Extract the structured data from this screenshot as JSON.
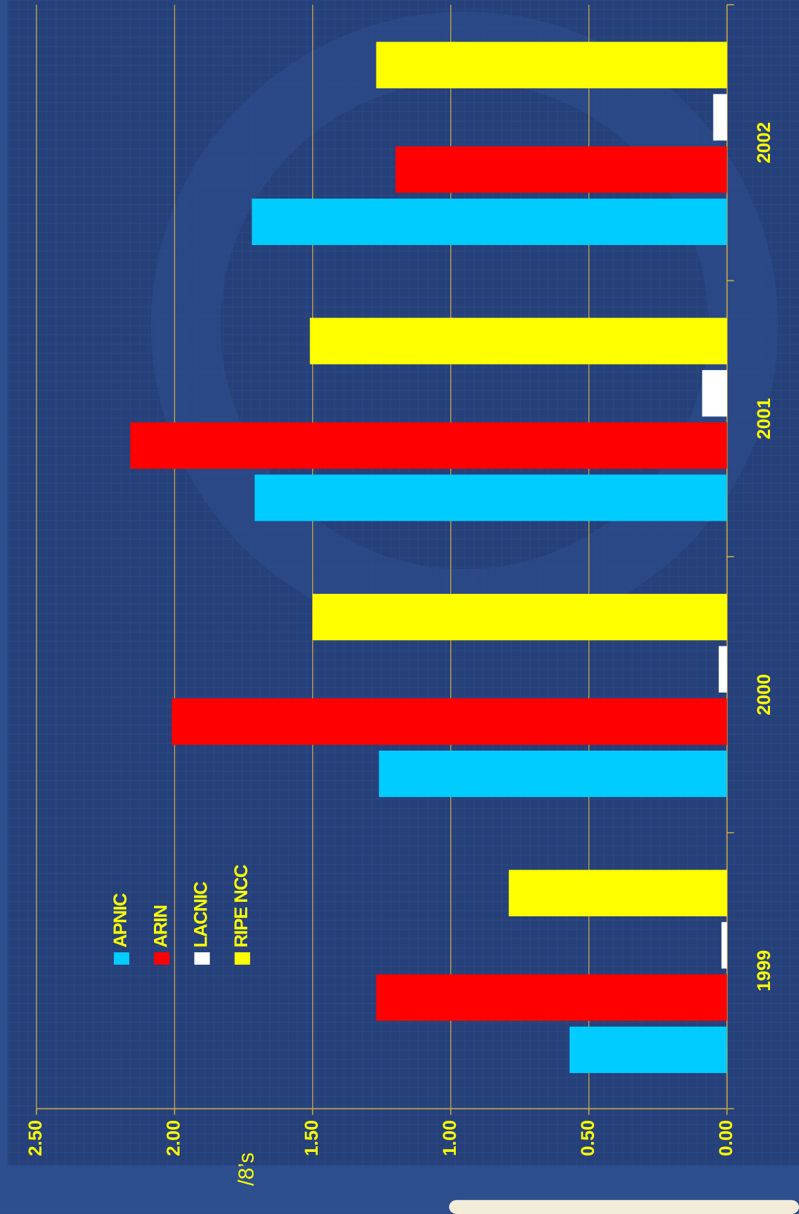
{
  "chart_data": {
    "type": "bar",
    "orientation": "horizontal",
    "y_axis_label": "/8’s",
    "categories": [
      "1999",
      "2000",
      "2001",
      "2002"
    ],
    "series": [
      {
        "name": "APNIC",
        "color": "#00ccff",
        "values": [
          0.57,
          1.26,
          1.71,
          1.72
        ]
      },
      {
        "name": "ARIN",
        "color": "#ff0000",
        "values": [
          1.27,
          2.01,
          2.16,
          1.2
        ]
      },
      {
        "name": "LACNIC",
        "color": "#ffffff",
        "values": [
          0.02,
          0.03,
          0.09,
          0.05
        ]
      },
      {
        "name": "RIPE NCC",
        "color": "#ffff00",
        "values": [
          0.79,
          1.5,
          1.51,
          1.27
        ]
      }
    ],
    "ylim": [
      0,
      2.5
    ],
    "yticks": [
      {
        "value": 0,
        "label": "0.00"
      },
      {
        "value": 0.5,
        "label": "0.50"
      },
      {
        "value": 1,
        "label": "1.00"
      },
      {
        "value": 1.5,
        "label": "1.50"
      },
      {
        "value": 2,
        "label": "2.00"
      },
      {
        "value": 2.5,
        "label": "2.50"
      }
    ],
    "grid": true
  }
}
